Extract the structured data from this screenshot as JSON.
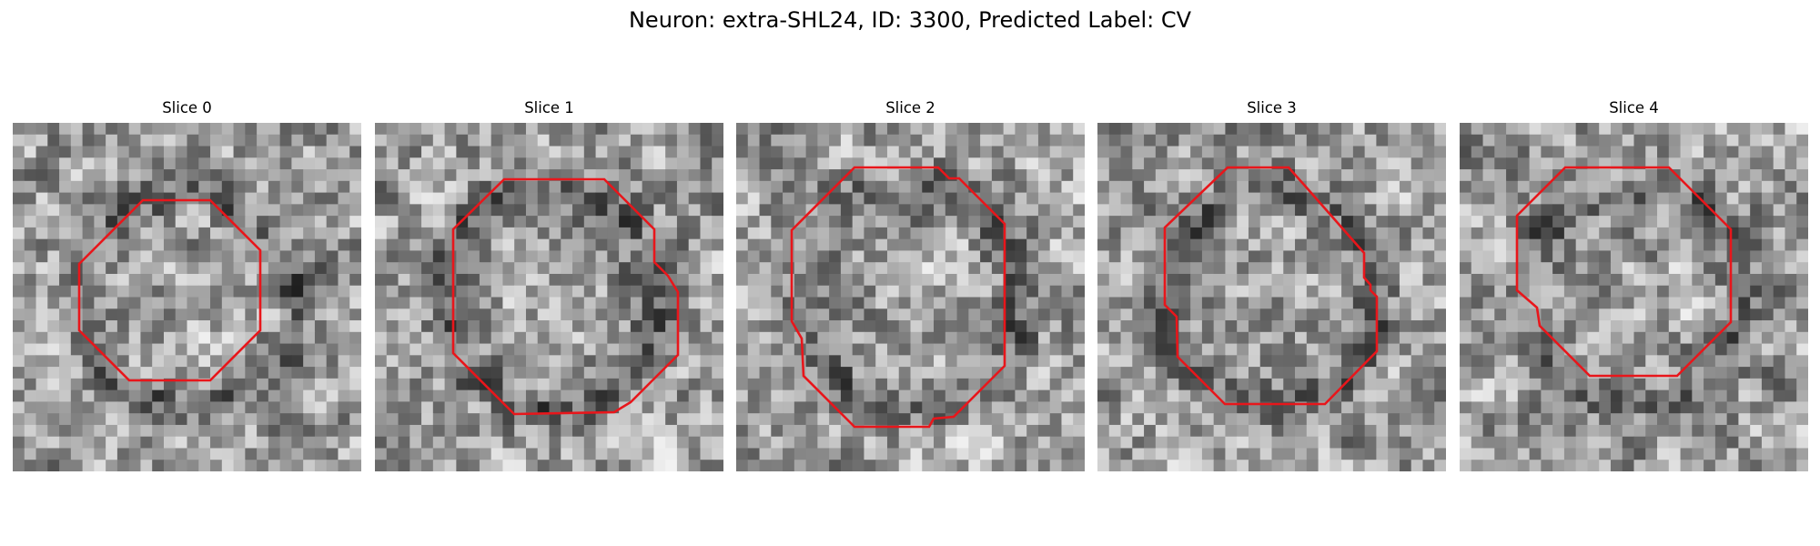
{
  "figure": {
    "title": "Neuron: extra-SHL24, ID: 3300, Predicted Label: CV"
  },
  "slices": [
    {
      "label": "Slice 0",
      "seed": 11,
      "tint": [
        0.15,
        0.55,
        0.8
      ]
    },
    {
      "label": "Slice 1",
      "seed": 23,
      "tint": [
        0.1,
        0.6,
        0.7
      ]
    },
    {
      "label": "Slice 2",
      "seed": 37,
      "tint": [
        0.2,
        0.5,
        0.8
      ]
    },
    {
      "label": "Slice 3",
      "seed": 53,
      "tint": [
        0.15,
        0.45,
        0.85
      ]
    },
    {
      "label": "Slice 4",
      "seed": 71,
      "tint": [
        0.1,
        0.5,
        0.75
      ]
    }
  ],
  "colors": {
    "contour": "#e8161b"
  },
  "contour_icon": "red-octagon-outline"
}
